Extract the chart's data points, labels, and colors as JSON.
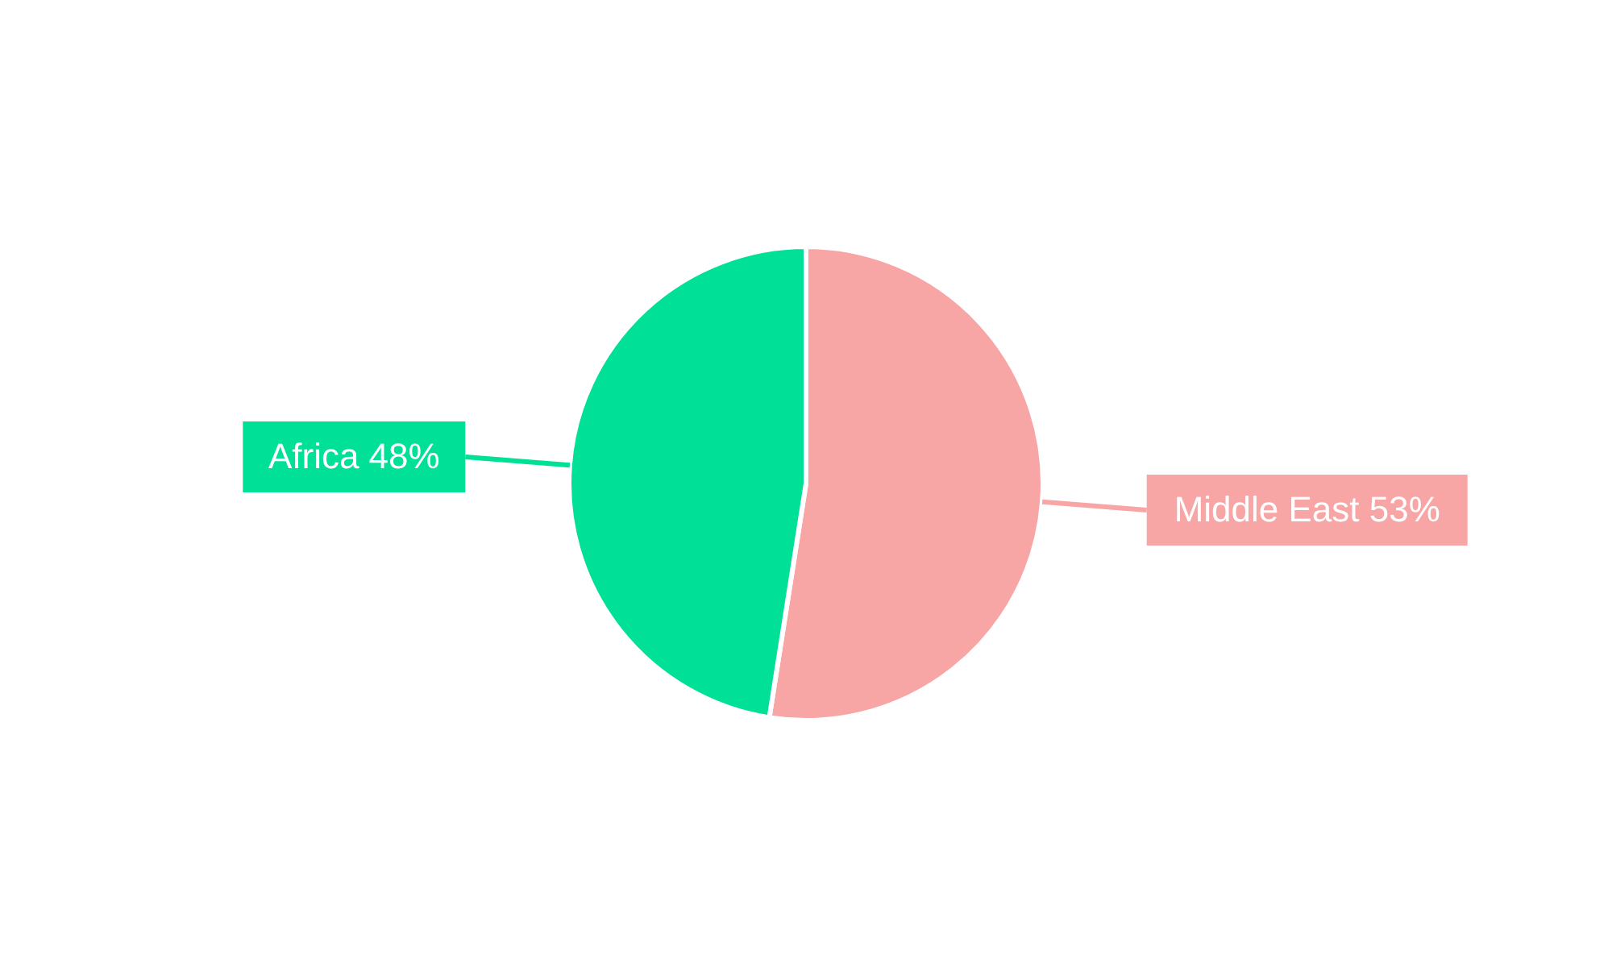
{
  "chart_data": {
    "type": "pie",
    "categories": [
      "Middle East",
      "Africa"
    ],
    "values": [
      53,
      48
    ],
    "value_labels": [
      "53%",
      "48%"
    ],
    "colors": [
      "#f8a5a6",
      "#00e096"
    ]
  }
}
